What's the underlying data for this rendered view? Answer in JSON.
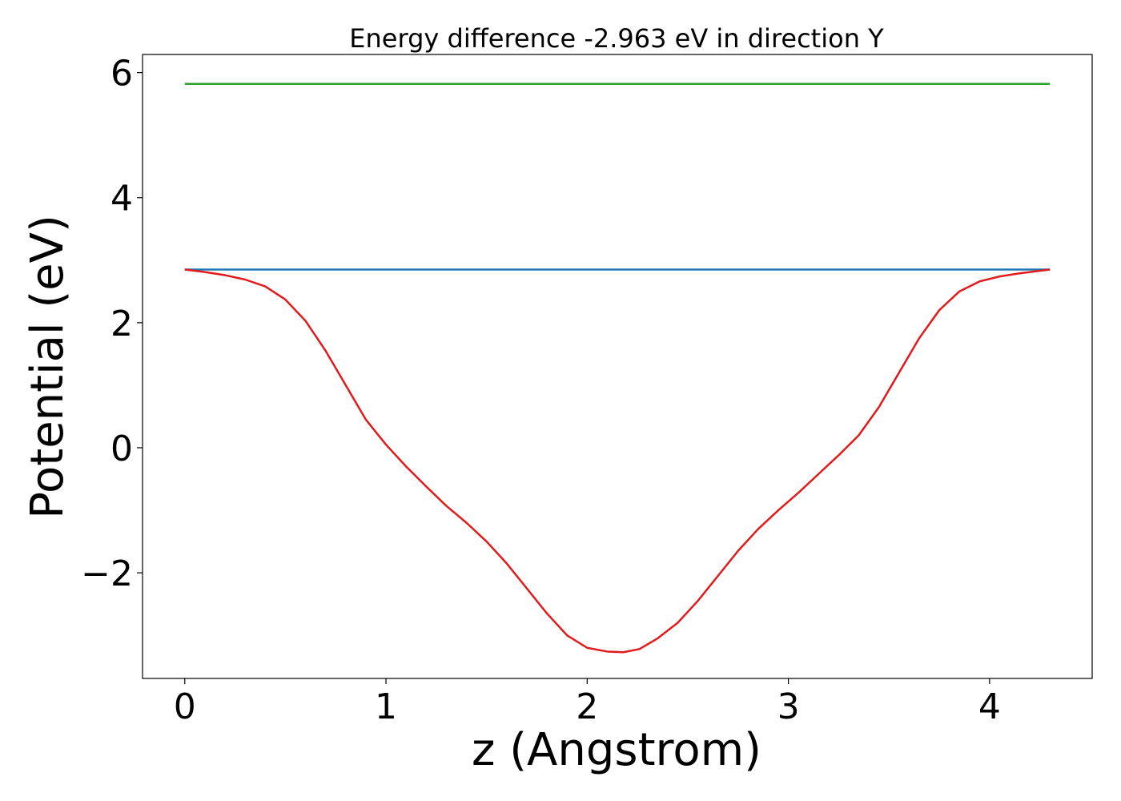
{
  "chart_data": {
    "type": "line",
    "title": "Energy difference -2.963 eV in direction Y",
    "xlabel": "z (Angstrom)",
    "ylabel": "Potential (eV)",
    "xlim": [
      -0.21,
      4.51
    ],
    "ylim": [
      -3.69,
      6.29
    ],
    "x_ticks": [
      {
        "value": 0,
        "label": "0"
      },
      {
        "value": 1,
        "label": "1"
      },
      {
        "value": 2,
        "label": "2"
      },
      {
        "value": 3,
        "label": "3"
      },
      {
        "value": 4,
        "label": "4"
      }
    ],
    "y_ticks": [
      {
        "value": -2,
        "label": "−2"
      },
      {
        "value": 0,
        "label": "0"
      },
      {
        "value": 2,
        "label": "2"
      },
      {
        "value": 4,
        "label": "4"
      },
      {
        "value": 6,
        "label": "6"
      }
    ],
    "grid": false,
    "legend": "none",
    "series": [
      {
        "color": "#2ca02c",
        "x": [
          0,
          4.3
        ],
        "y": [
          5.82,
          5.82
        ]
      },
      {
        "color": "#1f77b4",
        "x": [
          0,
          4.3
        ],
        "y": [
          2.85,
          2.85
        ]
      },
      {
        "color": "#e31a1c",
        "x": [
          0,
          0.1,
          0.2,
          0.3,
          0.4,
          0.5,
          0.6,
          0.7,
          0.8,
          0.9,
          1.0,
          1.1,
          1.2,
          1.3,
          1.4,
          1.5,
          1.6,
          1.7,
          1.8,
          1.9,
          2.0,
          2.1,
          2.18,
          2.26,
          2.35,
          2.45,
          2.55,
          2.65,
          2.75,
          2.85,
          2.95,
          3.05,
          3.15,
          3.25,
          3.35,
          3.45,
          3.55,
          3.65,
          3.75,
          3.85,
          3.95,
          4.05,
          4.15,
          4.3
        ],
        "y": [
          2.85,
          2.81,
          2.76,
          2.69,
          2.58,
          2.37,
          2.03,
          1.55,
          1.0,
          0.45,
          0.05,
          -0.3,
          -0.62,
          -0.93,
          -1.2,
          -1.5,
          -1.85,
          -2.25,
          -2.65,
          -3.0,
          -3.2,
          -3.26,
          -3.27,
          -3.22,
          -3.05,
          -2.8,
          -2.45,
          -2.05,
          -1.65,
          -1.3,
          -1.0,
          -0.72,
          -0.42,
          -0.12,
          0.2,
          0.65,
          1.2,
          1.75,
          2.2,
          2.5,
          2.66,
          2.74,
          2.79,
          2.85
        ]
      }
    ]
  }
}
